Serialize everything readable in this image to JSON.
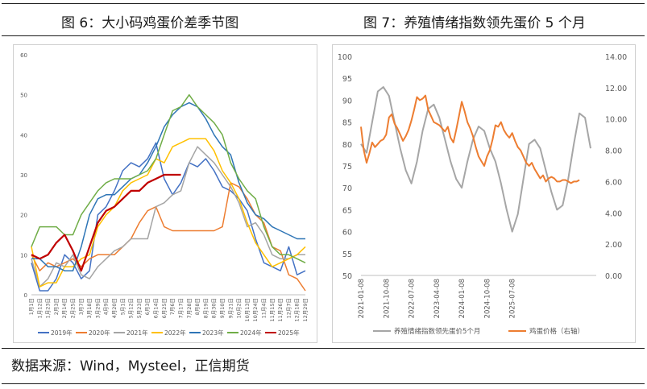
{
  "figures": {
    "left_title": "图 6：大小码鸡蛋价差季节图",
    "right_title": "图 7：养殖情绪指数领先蛋价 5 个月"
  },
  "source": "数据来源：Wind，Mysteel，正信期货",
  "chart_data": [
    {
      "type": "line",
      "title": "",
      "ylim": [
        0,
        60
      ],
      "yticks": [
        0,
        10,
        20,
        30,
        40,
        50,
        60
      ],
      "x_labels": [
        "1月1日",
        "1月12日",
        "1月23日",
        "2月3日",
        "2月14日",
        "2月25日",
        "3月7日",
        "3月18日",
        "3月29日",
        "4月9日",
        "4月20日",
        "5月1日",
        "5月12日",
        "5月23日",
        "6月3日",
        "6月14日",
        "6月25日",
        "7月6日",
        "7月17日",
        "7月28日",
        "8月8日",
        "8月19日",
        "8月30日",
        "9月10日",
        "9月21日",
        "10月2日",
        "10月13日",
        "10月24日",
        "11月4日",
        "11月15日",
        "11月26日",
        "12月7日",
        "12月18日",
        "12月29日"
      ],
      "grid": false,
      "legend_position": "bottom",
      "series": [
        {
          "name": "2019年",
          "color": "#4472c4",
          "values": [
            8,
            1,
            1,
            4,
            10,
            8,
            4,
            6,
            20,
            22,
            26,
            31,
            33,
            32,
            34,
            38,
            29,
            25,
            28,
            33,
            32,
            34,
            31,
            27,
            26,
            24,
            21,
            14,
            8,
            7,
            6,
            12,
            5,
            6
          ]
        },
        {
          "name": "2020年",
          "color": "#ed7d31",
          "values": [
            10,
            6,
            8,
            7,
            8,
            9,
            7,
            9,
            10,
            10,
            10,
            12,
            14,
            18,
            21,
            22,
            17,
            16,
            16,
            16,
            16,
            16,
            16,
            17,
            28,
            27,
            24,
            20,
            18,
            12,
            11,
            5,
            4,
            1
          ]
        },
        {
          "name": "2021年",
          "color": "#a5a5a5",
          "values": [
            9,
            2,
            4,
            8,
            7,
            10,
            5,
            4,
            7,
            9,
            11,
            12,
            14,
            14,
            14,
            22,
            23,
            25,
            26,
            33,
            37,
            35,
            33,
            30,
            27,
            23,
            17,
            18,
            15,
            10,
            9,
            9,
            10,
            10
          ]
        },
        {
          "name": "2022年",
          "color": "#ffc000",
          "values": [
            12,
            2,
            3,
            3,
            7,
            7,
            9,
            10,
            17,
            20,
            22,
            26,
            28,
            29,
            30,
            34,
            33,
            37,
            38,
            39,
            39,
            39,
            36,
            31,
            28,
            24,
            18,
            13,
            10,
            7,
            8,
            9,
            10,
            12
          ]
        },
        {
          "name": "2023年",
          "color": "#2e75b6",
          "values": [
            9,
            9,
            7,
            7,
            6,
            6,
            12,
            20,
            24,
            25,
            25,
            27,
            29,
            30,
            33,
            37,
            42,
            45,
            47,
            48,
            47,
            44,
            40,
            37,
            35,
            28,
            23,
            20,
            19,
            17,
            16,
            15,
            14,
            14
          ]
        },
        {
          "name": "2024年",
          "color": "#70ad47",
          "values": [
            12,
            17,
            17,
            17,
            15,
            15,
            20,
            23,
            26,
            28,
            29,
            29,
            29,
            30,
            31,
            34,
            40,
            46,
            47,
            50,
            47,
            45,
            43,
            40,
            33,
            29,
            26,
            24,
            17,
            12,
            10,
            10,
            9,
            8
          ]
        },
        {
          "name": "2025年",
          "color": "#c00000",
          "values": [
            10,
            9,
            10,
            13,
            15,
            11,
            6,
            12,
            18,
            21,
            22,
            24,
            26,
            26,
            28,
            29,
            30,
            30,
            30
          ]
        }
      ]
    },
    {
      "type": "line",
      "title": "",
      "x_labels": [
        "2021-01-08",
        "2021-10-08",
        "2022-07-08",
        "2023-04-08",
        "2024-01-08",
        "2024-10-08",
        "2025-07-08"
      ],
      "ylim_left": [
        50,
        100
      ],
      "yticks_left": [
        50,
        55,
        60,
        65,
        70,
        75,
        80,
        85,
        90,
        95,
        100
      ],
      "ylim_right": [
        0,
        14
      ],
      "yticks_right": [
        "0.00",
        "2.00",
        "4.00",
        "6.00",
        "8.00",
        "10.00",
        "12.00",
        "14.00"
      ],
      "grid": false,
      "legend_position": "bottom",
      "series": [
        {
          "name": "养殖情绪指数领先蛋价5个月",
          "axis": "left",
          "color": "#a6a6a6",
          "x": [
            0,
            2,
            4,
            6,
            8,
            10,
            12,
            14,
            16,
            18,
            20,
            22,
            24,
            26,
            28,
            30,
            32,
            34,
            36,
            38,
            40,
            42,
            44,
            46,
            48,
            50,
            52,
            54,
            56,
            58,
            60,
            62,
            64,
            66,
            68,
            70,
            72,
            74,
            76,
            78,
            80,
            82
          ],
          "values": [
            80,
            78,
            85,
            92,
            93,
            91,
            85,
            79,
            74,
            71,
            76,
            83,
            88,
            89,
            86,
            81,
            76,
            72,
            70,
            76,
            81,
            84,
            83,
            79,
            76,
            71,
            65,
            60,
            64,
            72,
            80,
            81,
            79,
            74,
            69,
            65,
            66,
            72,
            80,
            87,
            86,
            79
          ]
        },
        {
          "name": "鸡蛋价格（右轴）",
          "axis": "right",
          "color": "#ed7d31",
          "x": [
            0,
            1,
            2,
            3,
            4,
            5,
            6,
            7,
            8,
            9,
            10,
            11,
            12,
            13,
            14,
            15,
            16,
            17,
            18,
            19,
            20,
            21,
            22,
            23,
            24,
            25,
            26,
            27,
            28,
            29,
            30,
            31,
            32,
            33,
            34,
            35,
            36,
            37,
            38,
            39,
            40,
            41,
            42,
            43,
            44,
            45,
            46,
            47,
            48,
            49,
            50,
            51,
            52,
            53,
            54,
            55,
            56,
            57,
            58,
            59,
            60,
            61,
            62,
            63,
            64,
            65,
            66,
            67,
            68,
            69,
            70,
            71,
            72,
            73,
            74,
            75,
            76,
            77,
            78
          ],
          "values": [
            9.5,
            8.0,
            7.2,
            7.8,
            8.5,
            8.2,
            8.4,
            8.6,
            8.7,
            9.0,
            10.1,
            10.3,
            9.7,
            9.4,
            9.0,
            8.6,
            8.9,
            9.3,
            9.9,
            10.6,
            11.4,
            11.2,
            11.3,
            11.5,
            10.6,
            10.2,
            9.8,
            9.7,
            9.6,
            9.4,
            9.2,
            9.5,
            8.8,
            8.5,
            9.3,
            10.2,
            11.1,
            10.5,
            9.8,
            9.4,
            8.9,
            8.2,
            7.6,
            7.3,
            7.0,
            7.6,
            8.0,
            8.7,
            9.6,
            9.5,
            9.8,
            9.3,
            9.0,
            8.8,
            9.1,
            8.6,
            8.2,
            8.0,
            7.6,
            7.2,
            7.0,
            7.2,
            6.8,
            6.5,
            6.2,
            6.4,
            6.0,
            6.2,
            6.3,
            6.2,
            6.0,
            6.0,
            6.1,
            6.1,
            6.0,
            5.9,
            6.0,
            6.0,
            6.1
          ]
        }
      ]
    }
  ]
}
